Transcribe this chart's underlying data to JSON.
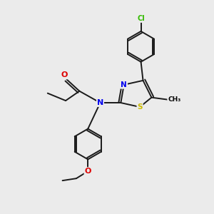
{
  "background_color": "#ebebeb",
  "bond_color": "#1a1a1a",
  "atom_colors": {
    "N": "#0000ee",
    "O": "#dd0000",
    "S": "#ccbb00",
    "Cl": "#33bb00",
    "C": "#1a1a1a"
  },
  "figsize": [
    3.0,
    3.0
  ],
  "dpi": 100,
  "lw": 1.4
}
